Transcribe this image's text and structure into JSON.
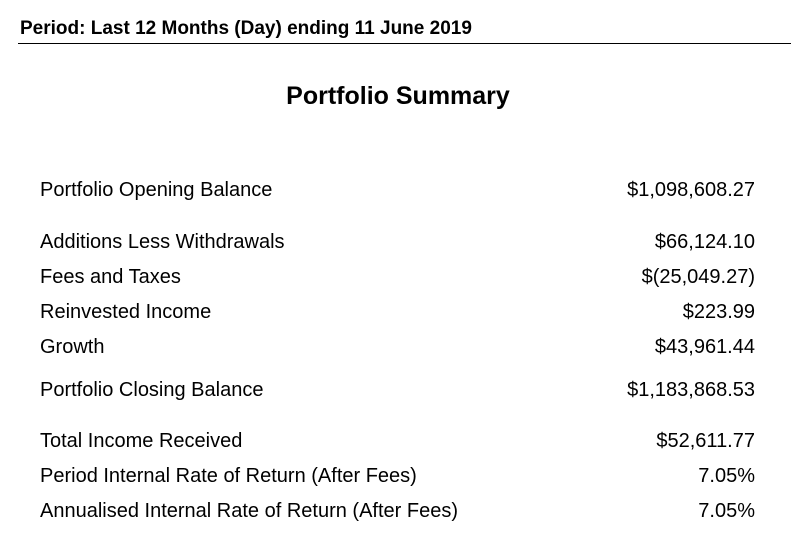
{
  "header": {
    "period_text": "Period: Last 12 Months (Day) ending 11 June 2019"
  },
  "summary": {
    "title": "Portfolio Summary",
    "rows": [
      {
        "label": "Portfolio Opening Balance",
        "value": "$1,098,608.27"
      },
      {
        "label": "Additions Less Withdrawals",
        "value": "$66,124.10"
      },
      {
        "label": "Fees and Taxes",
        "value": "$(25,049.27)"
      },
      {
        "label": "Reinvested Income",
        "value": "$223.99"
      },
      {
        "label": "Growth",
        "value": "$43,961.44"
      },
      {
        "label": "Portfolio Closing Balance",
        "value": "$1,183,868.53"
      },
      {
        "label": "Total Income Received",
        "value": "$52,611.77"
      },
      {
        "label": "Period Internal Rate of Return (After Fees)",
        "value": "7.05%"
      },
      {
        "label": "Annualised Internal Rate of Return (After Fees)",
        "value": "7.05%"
      }
    ]
  }
}
